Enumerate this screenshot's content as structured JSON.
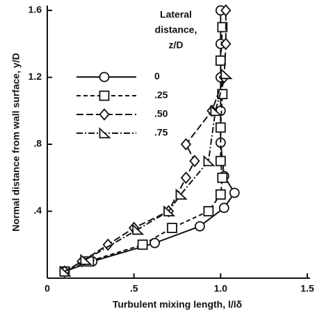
{
  "chart_data": {
    "type": "line",
    "xlabel": "Turbulent mixing length, l/lδ",
    "ylabel": "Normal distance from wall surface, y/D",
    "legend_title": [
      "Lateral",
      "distance,",
      "z/D"
    ],
    "xlim": [
      0,
      1.5
    ],
    "ylim": [
      0,
      1.6
    ],
    "xticks": [
      0,
      {
        "value": 0.5,
        "label": ".5"
      },
      {
        "value": 1.0,
        "label": "1.0"
      },
      1.5
    ],
    "yticks": [
      {
        "value": 0.4,
        "label": ".4"
      },
      {
        "value": 0.8,
        "label": ".8"
      },
      1.2,
      1.6
    ],
    "color": "#111111",
    "series": [
      {
        "name": "0",
        "marker": "circle",
        "linestyle": "solid",
        "x": [
          0.1,
          0.26,
          0.62,
          0.88,
          1.02,
          1.08,
          1.02,
          1.0,
          1.0,
          1.0,
          1.0,
          1.0
        ],
        "values": [
          0.04,
          0.1,
          0.21,
          0.31,
          0.42,
          0.51,
          0.61,
          0.81,
          1.0,
          1.2,
          1.4,
          1.6
        ]
      },
      {
        "name": ".25",
        "marker": "square",
        "linestyle": "dashed",
        "x": [
          0.1,
          0.24,
          0.55,
          0.72,
          0.93,
          1.0,
          1.01,
          1.0,
          1.0,
          1.01,
          1.0,
          1.01
        ],
        "values": [
          0.04,
          0.1,
          0.2,
          0.3,
          0.4,
          0.5,
          0.6,
          0.7,
          0.9,
          1.1,
          1.3,
          1.5
        ]
      },
      {
        "name": ".50",
        "marker": "diamond",
        "linestyle": "longdash",
        "x": [
          0.1,
          0.2,
          0.35,
          0.5,
          0.7,
          0.8,
          0.85,
          0.8,
          0.95,
          1.02,
          1.03,
          1.03
        ],
        "values": [
          0.04,
          0.1,
          0.2,
          0.3,
          0.4,
          0.6,
          0.7,
          0.8,
          1.0,
          1.2,
          1.4,
          1.6
        ]
      },
      {
        "name": ".75",
        "marker": "triangle",
        "linestyle": "dashdot",
        "x": [
          0.1,
          0.22,
          0.52,
          0.7,
          0.77,
          0.93,
          0.97,
          1.03
        ],
        "values": [
          0.04,
          0.11,
          0.29,
          0.4,
          0.5,
          0.7,
          1.0,
          1.22
        ]
      }
    ]
  }
}
